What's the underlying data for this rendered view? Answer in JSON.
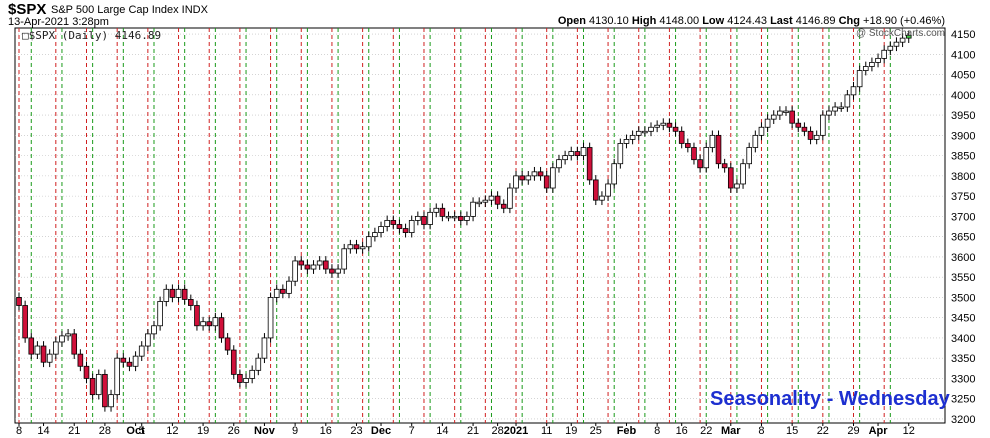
{
  "header": {
    "symbol": "$SPX",
    "description": "S&P 500 Large Cap Index  INDX",
    "date": "13-Apr-2021 3:28pm",
    "quote": {
      "open_label": "Open",
      "open": "4130.10",
      "high_label": "High",
      "high": "4148.00",
      "low_label": "Low",
      "low": "4124.43",
      "last_label": "Last",
      "last": "4146.89",
      "chg_label": "Chg",
      "chg": "+18.90 (+0.46%)"
    },
    "brand": "@ StockCharts.com"
  },
  "legend": "□$SPX (Daily) 4146.89",
  "watermark": "Seasonality - Wednesday",
  "chart_data": {
    "type": "candlestick",
    "title": "$SPX",
    "series_name": "$SPX (Daily)",
    "ylim": [
      3190,
      4165
    ],
    "y_ticks": [
      3200,
      3250,
      3300,
      3350,
      3400,
      3450,
      3500,
      3550,
      3600,
      3650,
      3700,
      3750,
      3800,
      3850,
      3900,
      3950,
      4000,
      4050,
      4100,
      4150
    ],
    "x_tick_labels": [
      {
        "i": 0,
        "label": "8",
        "bold": false
      },
      {
        "i": 4,
        "label": "14",
        "bold": false
      },
      {
        "i": 9,
        "label": "21",
        "bold": false
      },
      {
        "i": 14,
        "label": "28",
        "bold": false
      },
      {
        "i": 19,
        "label": "Oct",
        "bold": true
      },
      {
        "i": 20,
        "label": "5",
        "bold": false
      },
      {
        "i": 25,
        "label": "12",
        "bold": false
      },
      {
        "i": 30,
        "label": "19",
        "bold": false
      },
      {
        "i": 35,
        "label": "26",
        "bold": false
      },
      {
        "i": 40,
        "label": "Nov",
        "bold": true
      },
      {
        "i": 45,
        "label": "9",
        "bold": false
      },
      {
        "i": 50,
        "label": "16",
        "bold": false
      },
      {
        "i": 55,
        "label": "23",
        "bold": false
      },
      {
        "i": 59,
        "label": "Dec",
        "bold": true
      },
      {
        "i": 64,
        "label": "7",
        "bold": false
      },
      {
        "i": 69,
        "label": "14",
        "bold": false
      },
      {
        "i": 74,
        "label": "21",
        "bold": false
      },
      {
        "i": 78,
        "label": "28",
        "bold": false
      },
      {
        "i": 81,
        "label": "2021",
        "bold": true
      },
      {
        "i": 86,
        "label": "11",
        "bold": false
      },
      {
        "i": 90,
        "label": "19",
        "bold": false
      },
      {
        "i": 94,
        "label": "25",
        "bold": false
      },
      {
        "i": 99,
        "label": "Feb",
        "bold": true
      },
      {
        "i": 104,
        "label": "8",
        "bold": false
      },
      {
        "i": 108,
        "label": "16",
        "bold": false
      },
      {
        "i": 112,
        "label": "22",
        "bold": false
      },
      {
        "i": 116,
        "label": "Mar",
        "bold": true
      },
      {
        "i": 121,
        "label": "8",
        "bold": false
      },
      {
        "i": 126,
        "label": "15",
        "bold": false
      },
      {
        "i": 131,
        "label": "22",
        "bold": false
      },
      {
        "i": 136,
        "label": "29",
        "bold": false
      },
      {
        "i": 140,
        "label": "Apr",
        "bold": true
      },
      {
        "i": 145,
        "label": "12",
        "bold": false
      }
    ],
    "vlines_green": [
      2,
      7,
      12,
      17,
      22,
      27,
      32,
      37,
      42,
      47,
      52,
      57,
      62,
      67,
      72,
      77,
      82,
      87,
      92,
      97,
      102,
      107,
      112,
      117,
      122,
      127,
      132,
      137,
      142
    ],
    "vlines_red": [
      0,
      6,
      11,
      16,
      21,
      26,
      31,
      36,
      41,
      46,
      51,
      56,
      61,
      66,
      71,
      76,
      81,
      86,
      91,
      96,
      101,
      106,
      111,
      116,
      121,
      126,
      131,
      136,
      141
    ],
    "closes": [
      3480,
      3400,
      3360,
      3380,
      3340,
      3360,
      3390,
      3405,
      3410,
      3360,
      3330,
      3300,
      3260,
      3310,
      3230,
      3260,
      3350,
      3340,
      3330,
      3355,
      3380,
      3410,
      3430,
      3490,
      3520,
      3500,
      3520,
      3495,
      3480,
      3430,
      3440,
      3430,
      3450,
      3400,
      3370,
      3310,
      3290,
      3300,
      3320,
      3350,
      3400,
      3500,
      3520,
      3510,
      3540,
      3590,
      3580,
      3570,
      3580,
      3590,
      3570,
      3560,
      3570,
      3620,
      3630,
      3620,
      3625,
      3650,
      3660,
      3675,
      3690,
      3680,
      3670,
      3660,
      3690,
      3700,
      3680,
      3710,
      3720,
      3700,
      3700,
      3700,
      3690,
      3700,
      3735,
      3735,
      3740,
      3750,
      3730,
      3720,
      3770,
      3800,
      3790,
      3800,
      3810,
      3800,
      3770,
      3820,
      3840,
      3850,
      3860,
      3850,
      3870,
      3790,
      3740,
      3750,
      3780,
      3830,
      3880,
      3890,
      3900,
      3910,
      3910,
      3920,
      3925,
      3930,
      3920,
      3910,
      3880,
      3870,
      3840,
      3820,
      3870,
      3900,
      3830,
      3820,
      3770,
      3780,
      3830,
      3870,
      3900,
      3920,
      3940,
      3950,
      3960,
      3960,
      3930,
      3920,
      3910,
      3890,
      3900,
      3950,
      3960,
      3970,
      3970,
      4000,
      4020,
      4060,
      4070,
      4080,
      4090,
      4110,
      4120,
      4130,
      4140,
      4146.89
    ]
  }
}
